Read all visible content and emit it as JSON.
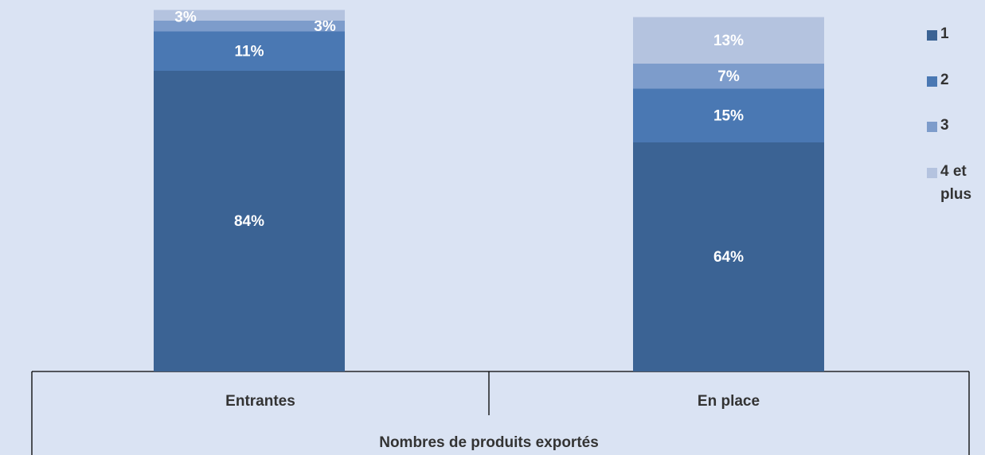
{
  "chart_data": {
    "type": "stacked_bar",
    "x_label": "Nombres de produits exportés",
    "categories": [
      "Entrantes",
      "En place"
    ],
    "ylim": [
      0,
      100
    ],
    "series": [
      {
        "name": "1",
        "color": "#3b6394",
        "values": [
          84,
          64
        ],
        "value_labels": [
          "84%",
          "64%"
        ]
      },
      {
        "name": "2",
        "color": "#4a78b3",
        "values": [
          11,
          15
        ],
        "value_labels": [
          "11%",
          "15%"
        ]
      },
      {
        "name": "3",
        "color": "#7d9ccb",
        "values": [
          3,
          7
        ],
        "value_labels": [
          "3%",
          "7%"
        ]
      },
      {
        "name": "4 et plus",
        "color": "#b4c3df",
        "values": [
          3,
          13
        ],
        "value_labels": [
          "3%",
          "13%"
        ]
      }
    ]
  }
}
